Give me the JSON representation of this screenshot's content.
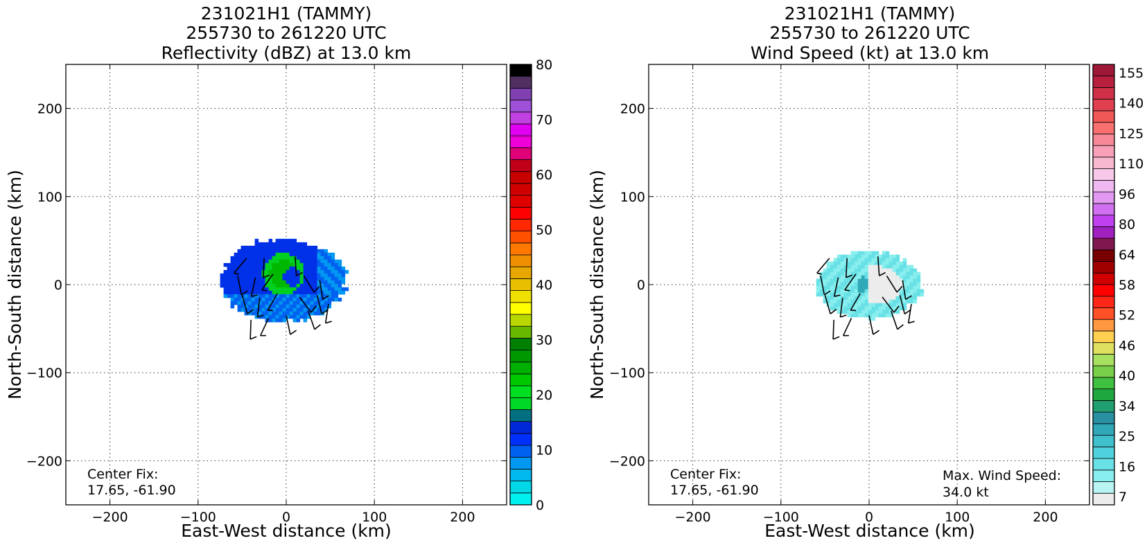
{
  "panels": [
    {
      "title_lines": [
        "231021H1 (TAMMY)",
        "255730 to 261220 UTC",
        "Reflectivity (dBZ) at 13.0 km"
      ],
      "xlabel": "East-West distance (km)",
      "ylabel": "North-South distance (km)",
      "note_lines": [
        "Center Fix:",
        "17.65, -61.90"
      ],
      "right_note_lines": [],
      "colorbar_labels": [
        "0",
        "10",
        "20",
        "30",
        "40",
        "50",
        "60",
        "70",
        "80"
      ],
      "colorbar_colors": [
        "#00f0f0",
        "#00d8e8",
        "#00b8ee",
        "#0098f0",
        "#0060f0",
        "#0030ff",
        "#0028d8",
        "#007080",
        "#00d828",
        "#00e020",
        "#00c800",
        "#00b000",
        "#009800",
        "#008000",
        "#68b800",
        "#b8d800",
        "#ffff00",
        "#f0e000",
        "#e8c000",
        "#e8a800",
        "#f09000",
        "#ff7800",
        "#ff5000",
        "#ff2800",
        "#ff0000",
        "#e00000",
        "#d00000",
        "#c80000",
        "#c00018",
        "#e00078",
        "#f000d8",
        "#e000f0",
        "#c040e0",
        "#a050d8",
        "#8040b0",
        "#503060",
        "#000000"
      ]
    },
    {
      "title_lines": [
        "231021H1 (TAMMY)",
        "255730 to 261220 UTC",
        "Wind Speed (kt) at 13.0 km"
      ],
      "xlabel": "East-West distance (km)",
      "ylabel": "North-South distance (km)",
      "note_lines": [
        "Center Fix:",
        "17.65, -61.90"
      ],
      "right_note_lines": [
        "Max. Wind Speed:",
        "34.0 kt"
      ],
      "colorbar_labels": [
        "7",
        "16",
        "25",
        "34",
        "40",
        "46",
        "52",
        "58",
        "64",
        "80",
        "96",
        "110",
        "125",
        "140",
        "155"
      ],
      "colorbar_colors": [
        "#ececec",
        "#b8f4f4",
        "#88eeee",
        "#68e0e6",
        "#50d2dc",
        "#40c0cc",
        "#30a8b8",
        "#2890a0",
        "#20a070",
        "#20a840",
        "#40c040",
        "#78d048",
        "#a8e060",
        "#e0e060",
        "#ffd050",
        "#ff9840",
        "#ff5028",
        "#ff2818",
        "#ff0000",
        "#d00000",
        "#a00000",
        "#780000",
        "#801850",
        "#a020c0",
        "#c040f0",
        "#d070f0",
        "#e098f0",
        "#f0b8f0",
        "#f8c8e8",
        "#f8b8d0",
        "#f8a0b8",
        "#f88898",
        "#f87070",
        "#f05858",
        "#e04050",
        "#d03048",
        "#b82040",
        "#a01838"
      ]
    }
  ],
  "chart_data": [
    {
      "type": "heatmap",
      "title": "231021H1 (TAMMY) 255730 to 261220 UTC Reflectivity (dBZ) at 13.0 km",
      "xlabel": "East-West distance (km)",
      "ylabel": "North-South distance (km)",
      "xlim": [
        -250,
        250
      ],
      "ylim": [
        -250,
        250
      ],
      "xticks": [
        -200,
        -100,
        0,
        100,
        200
      ],
      "yticks": [
        -200,
        -100,
        0,
        100,
        200
      ],
      "grid": true,
      "colorbar": {
        "label": "dBZ",
        "min": 0,
        "max": 80,
        "ticks": [
          0,
          10,
          20,
          30,
          40,
          50,
          60,
          70,
          80
        ]
      },
      "echo_extent_km": {
        "x": [
          -75,
          68
        ],
        "y": [
          -42,
          52
        ]
      },
      "core": {
        "x": [
          -28,
          18
        ],
        "y": [
          -10,
          38
        ],
        "value_range": [
          20,
          30
        ]
      },
      "outer_value_range": [
        5,
        15
      ],
      "center_fix": [
        17.65,
        -61.9
      ]
    },
    {
      "type": "heatmap",
      "title": "231021H1 (TAMMY) 255730 to 261220 UTC Wind Speed (kt) at 13.0 km",
      "xlabel": "East-West distance (km)",
      "ylabel": "North-South distance (km)",
      "xlim": [
        -250,
        250
      ],
      "ylim": [
        -250,
        250
      ],
      "xticks": [
        -200,
        -100,
        0,
        100,
        200
      ],
      "yticks": [
        -200,
        -100,
        0,
        100,
        200
      ],
      "grid": true,
      "colorbar": {
        "label": "kt",
        "ticks": [
          7,
          16,
          25,
          34,
          40,
          46,
          52,
          58,
          64,
          80,
          96,
          110,
          125,
          140,
          155
        ]
      },
      "echo_extent_km": {
        "x": [
          -60,
          60
        ],
        "y": [
          -38,
          38
        ]
      },
      "max_wind_kt": 34.0,
      "center_fix": [
        17.65,
        -61.9
      ]
    }
  ]
}
